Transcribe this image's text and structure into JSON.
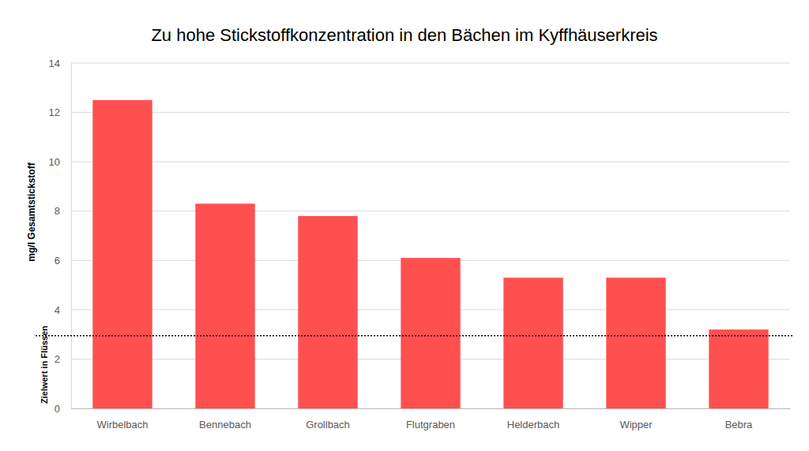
{
  "chart_data": {
    "type": "bar",
    "title": "Zu hohe Stickstoffkonzentration in den Bächen im Kyffhäuserkreis",
    "y_label": "mg/l Gesamtstickstoff",
    "categories": [
      "Wirbelbach",
      "Bennebach",
      "Grollbach",
      "Flutgraben",
      "Helderbach",
      "Wipper",
      "Bebra"
    ],
    "values": [
      12.5,
      8.3,
      7.8,
      6.1,
      5.3,
      5.3,
      3.2
    ],
    "color": "#ff5050",
    "target": {
      "label": "Zielwert in Flüssen",
      "value": 2.95
    },
    "ylim": [
      0,
      14
    ],
    "yticks": [
      0,
      2,
      4,
      6,
      8,
      10,
      12,
      14
    ],
    "grid": true
  }
}
